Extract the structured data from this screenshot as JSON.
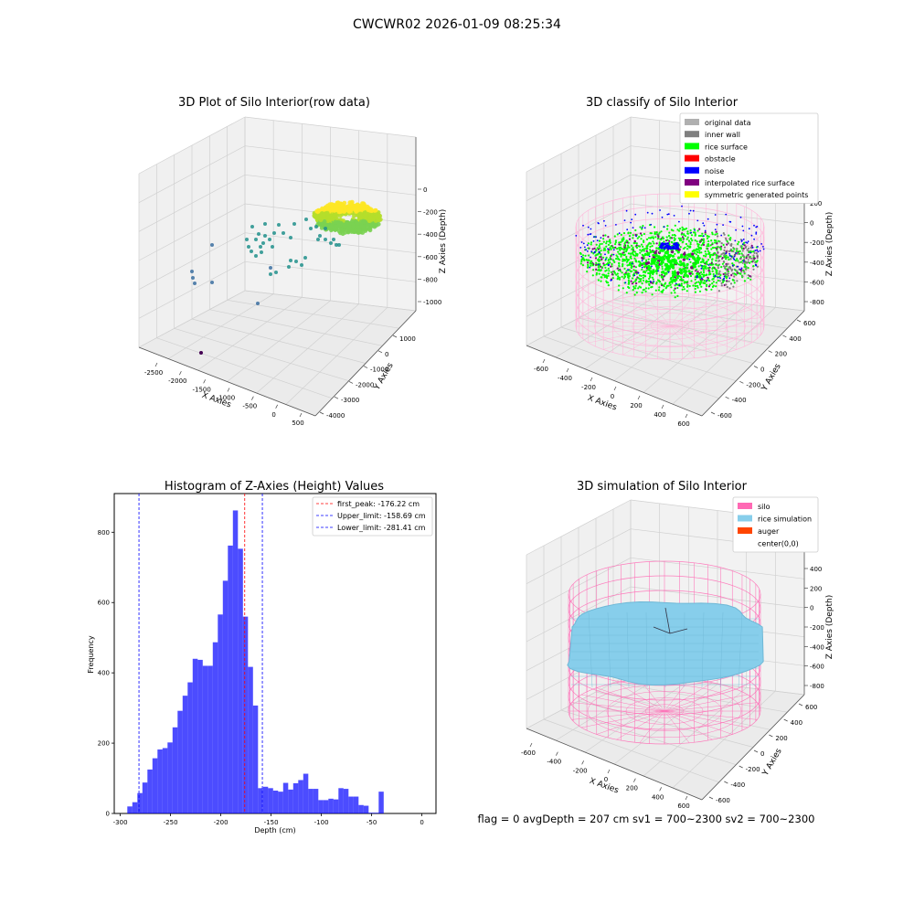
{
  "suptitle": "CWCWR02 2026-01-09 08:25:34",
  "footer": "flag = 0     avgDepth = 207 cm  sv1 = 700~2300  sv2 = 700~2300",
  "colors": {
    "raw_low": "#440154",
    "raw_mid": "#21918c",
    "raw_high": "#b5de2b",
    "raw_top": "#fde725",
    "silo_pink": "#ff69b4",
    "silo_faint": "#ffb6d9",
    "rice_sim": "#87ceeb",
    "auger": "#ff4500",
    "hist_bar": "#0000ff",
    "peak_line": "#ff0000",
    "limit_line": "#0000ff",
    "rice_surface": "#00ff00",
    "noise": "#0000ff",
    "inner_wall": "#808080"
  },
  "chart_data": [
    {
      "type": "scatter",
      "title": "3D Plot of Silo Interior(row data)",
      "xlabel": "X Axies",
      "ylabel": "Y Axies",
      "zlabel": "Z Axies (Depth)",
      "xticks": [
        "-2500",
        "-2000",
        "-1500",
        "-1000",
        "-500",
        "0",
        "500"
      ],
      "yticks": [
        "1000",
        "0",
        "-1000",
        "-2000",
        "-3000",
        "-4000"
      ],
      "zticks": [
        "0",
        "-200",
        "-400",
        "-600",
        "-800",
        "-1000"
      ]
    },
    {
      "type": "scatter",
      "title": "3D classify of Silo Interior",
      "xlabel": "X Axies",
      "ylabel": "Y Axies",
      "zlabel": "Z Axies (Depth)",
      "xticks": [
        "-600",
        "-400",
        "-200",
        "0",
        "200",
        "400",
        "600"
      ],
      "yticks": [
        "600",
        "400",
        "200",
        "0",
        "-200",
        "-400",
        "-600"
      ],
      "zticks": [
        "200",
        "0",
        "-200",
        "-400",
        "-600",
        "-800"
      ],
      "legend": [
        "original data",
        "inner wall",
        "rice surface",
        "obstacle",
        "noise",
        "interpolated rice surface",
        "symmetric generated points"
      ],
      "legend_colors": [
        "#b0b0b0",
        "#808080",
        "#00ff00",
        "#ff0000",
        "#0000ff",
        "#800080",
        "#ffff00"
      ],
      "legend_loc": "top-right"
    },
    {
      "type": "bar",
      "title": "Histogram of Z-Axies (Height) Values",
      "xlabel": "Depth (cm)",
      "ylabel": "Frequency",
      "xlim": [
        -306,
        14
      ],
      "ylim": [
        0,
        910
      ],
      "xticks": [
        -300,
        -250,
        -200,
        -150,
        -100,
        -50,
        0
      ],
      "yticks": [
        0,
        200,
        400,
        600,
        800
      ],
      "bin_start": -293,
      "bin_width": 5,
      "values": [
        20,
        32,
        58,
        88,
        125,
        157,
        182,
        186,
        202,
        245,
        292,
        335,
        373,
        440,
        437,
        420,
        420,
        487,
        566,
        662,
        762,
        862,
        753,
        560,
        417,
        307,
        72,
        76,
        72,
        65,
        62,
        87,
        68,
        86,
        95,
        113,
        70,
        70,
        38,
        38,
        42,
        40,
        72,
        70,
        48,
        48,
        24,
        22,
        2,
        2,
        62
      ],
      "vlines": [
        {
          "label": "first_peak: -176.22 cm",
          "x": -176.22,
          "color": "#ff0000"
        },
        {
          "label": "Upper_limit: -158.69 cm",
          "x": -158.69,
          "color": "#0000ff"
        },
        {
          "label": "Lower_limit: -281.41 cm",
          "x": -281.41,
          "color": "#0000ff"
        }
      ],
      "legend_loc": "top-right"
    },
    {
      "type": "surface",
      "title": "3D simulation of Silo Interior",
      "xlabel": "X Axies",
      "ylabel": "Y Axies",
      "zlabel": "Z Axies (Depth)",
      "xticks": [
        "-600",
        "-400",
        "-200",
        "0",
        "200",
        "400",
        "600"
      ],
      "yticks": [
        "600",
        "400",
        "200",
        "0",
        "-200",
        "-400",
        "-600"
      ],
      "zticks": [
        "400",
        "200",
        "0",
        "-200",
        "-400",
        "-600",
        "-800"
      ],
      "legend": [
        "silo",
        "rice simulation",
        "auger",
        "center(0,0)"
      ],
      "legend_colors": [
        "#ff69b4",
        "#87ceeb",
        "#ff4500",
        "#ffffff"
      ],
      "legend_loc": "top-right"
    }
  ]
}
